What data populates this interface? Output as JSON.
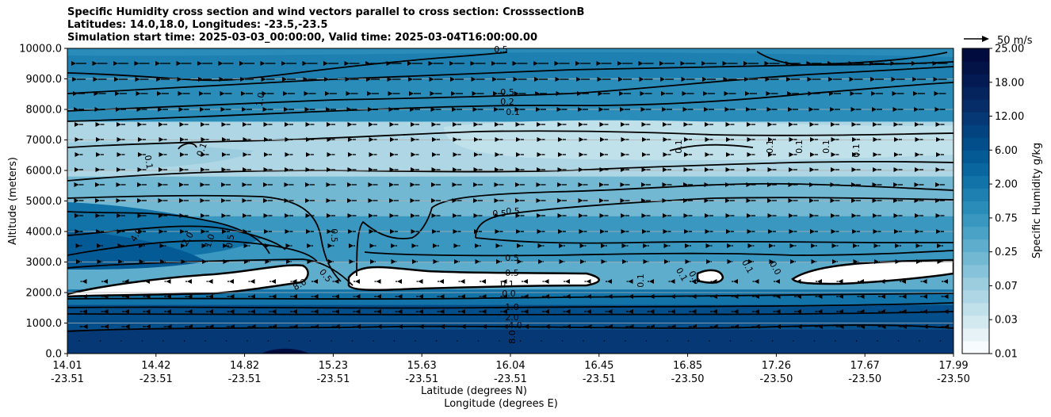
{
  "chart_data": {
    "type": "heatmap",
    "title": {
      "line1": "Specific Humidity cross section and wind vectors parallel to cross section: CrosssectionB",
      "line2": "Latitudes: 14.0,18.0, Longitudes: -23.5,-23.5",
      "line3": "Simulation start time: 2025-03-03_00:00:00, Valid time: 2025-03-04T16:00:00.00"
    },
    "ylabel": "Altitude (meters)",
    "xlabel_lat": "Latitude (degrees N)",
    "xlabel_lon": "Longitude (degrees E)",
    "ylim": [
      0,
      10000
    ],
    "y_ticks": [
      "0.0",
      "1000.0",
      "2000.0",
      "3000.0",
      "4000.0",
      "5000.0",
      "6000.0",
      "7000.0",
      "8000.0",
      "9000.0",
      "10000.0"
    ],
    "x_ticks": [
      {
        "lat": "14.01",
        "lon": "-23.51"
      },
      {
        "lat": "14.42",
        "lon": "-23.51"
      },
      {
        "lat": "14.82",
        "lon": "-23.51"
      },
      {
        "lat": "15.23",
        "lon": "-23.51"
      },
      {
        "lat": "15.63",
        "lon": "-23.51"
      },
      {
        "lat": "16.04",
        "lon": "-23.51"
      },
      {
        "lat": "16.45",
        "lon": "-23.51"
      },
      {
        "lat": "16.85",
        "lon": "-23.50"
      },
      {
        "lat": "17.26",
        "lon": "-23.50"
      },
      {
        "lat": "17.67",
        "lon": "-23.50"
      },
      {
        "lat": "17.99",
        "lon": "-23.50"
      }
    ],
    "grid": "horizontal",
    "colorbar": {
      "label": "Specific Humidity g/kg",
      "levels": [
        0.01,
        0.02,
        0.03,
        0.05,
        0.07,
        0.1,
        0.15,
        0.25,
        0.35,
        0.5,
        0.75,
        1.0,
        1.5,
        2.0,
        3.0,
        4.0,
        6.0,
        8.0,
        10.0,
        12.0,
        15.0,
        18.0,
        21.0,
        25.0
      ],
      "tick_labels": [
        "25.00",
        "18.00",
        "12.00",
        "6.00",
        "2.00",
        "0.75",
        "0.25",
        "0.07",
        "0.03",
        "0.01"
      ],
      "colors": [
        "#f7fbfd",
        "#e6f2f6",
        "#d3e9f0",
        "#c0e0ea",
        "#aed6e4",
        "#9bcddf",
        "#86c2da",
        "#72b8d3",
        "#5eadcd",
        "#4aa2c6",
        "#3997c0",
        "#2a8cb9",
        "#1d80b1",
        "#1273a8",
        "#09669e",
        "#035a94",
        "#024e8a",
        "#03437f",
        "#053874",
        "#062d68",
        "#05235d",
        "#041a52",
        "#031247",
        "#020b3e"
      ]
    },
    "vector_key": "50 m/s",
    "contour_labels": [
      "0.5",
      "0.5",
      "0.2",
      "0.1",
      "1.0",
      "0.1",
      "0.1",
      "0.1",
      "0.1",
      "0.1",
      "0.1",
      "0.1",
      "0.5",
      "0.5",
      "4.0",
      "2.0",
      "1.0",
      "0.5",
      "0.5",
      "0.5",
      "0.5",
      "0.5",
      "0.1",
      "0.0",
      "1.0",
      "2.0",
      "4.0",
      "8.0",
      "8.0",
      "0.1",
      "0.1",
      "0.8",
      "0.1",
      "0.0"
    ],
    "layers": [
      {
        "bottom_km": 0.0,
        "top_km": 0.8,
        "value": 10.0
      },
      {
        "bottom_km": 0.8,
        "top_km": 1.6,
        "value": 6.0
      },
      {
        "bottom_km": 1.6,
        "top_km": 2.1,
        "value": 2.0
      },
      {
        "bottom_km": 3.0,
        "top_km": 4.5,
        "value": 0.75
      },
      {
        "bottom_km": 4.5,
        "top_km": 5.8,
        "value": 0.25
      },
      {
        "bottom_km": 5.8,
        "top_km": 7.6,
        "value": 0.07
      },
      {
        "bottom_km": 7.6,
        "top_km": 10.0,
        "value": 1.0
      }
    ]
  }
}
